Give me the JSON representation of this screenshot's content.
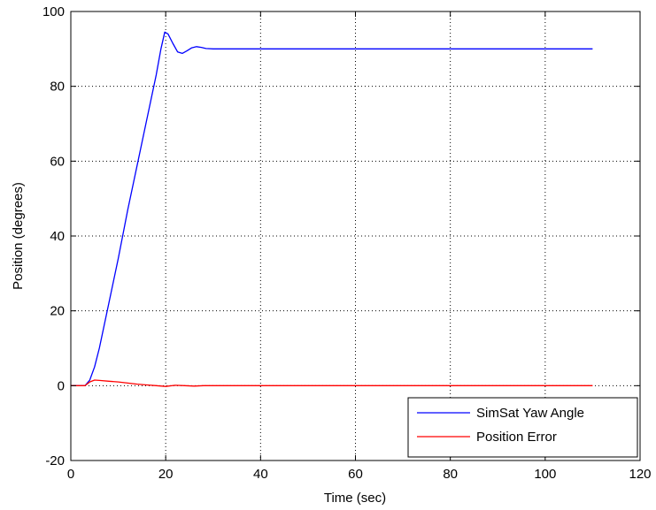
{
  "chart_data": {
    "type": "line",
    "title": "",
    "xlabel": "Time (sec)",
    "ylabel": "Position (degrees)",
    "xlim": [
      0,
      120
    ],
    "ylim": [
      -20,
      100
    ],
    "xticks": [
      0,
      20,
      40,
      60,
      80,
      100,
      120
    ],
    "yticks": [
      -20,
      0,
      20,
      40,
      60,
      80,
      100
    ],
    "grid": true,
    "legend_position": "bottom-right",
    "series": [
      {
        "name": "SimSat Yaw Angle",
        "color": "#0000ff",
        "x": [
          0,
          3,
          4,
          5,
          6,
          8,
          10,
          12,
          14,
          16,
          18,
          19,
          19.8,
          20.5,
          21.5,
          22.5,
          23.5,
          24.5,
          25.5,
          26.5,
          27.5,
          28.5,
          30,
          40,
          50,
          60,
          70,
          80,
          90,
          100,
          110
        ],
        "y": [
          0,
          0,
          1.5,
          5,
          10,
          22,
          34,
          47,
          59,
          71,
          83,
          90,
          94.5,
          94,
          91.5,
          89.2,
          88.8,
          89.5,
          90.3,
          90.6,
          90.4,
          90.1,
          90,
          90,
          90,
          90,
          90,
          90,
          90,
          90,
          90
        ]
      },
      {
        "name": "Position Error",
        "color": "#ff0000",
        "x": [
          0,
          3,
          4,
          5,
          6,
          8,
          10,
          12,
          14,
          16,
          18,
          20,
          22,
          24,
          26,
          28,
          30,
          40,
          50,
          60,
          70,
          80,
          90,
          100,
          110
        ],
        "y": [
          0,
          0,
          1,
          1.5,
          1.4,
          1.2,
          1,
          0.7,
          0.4,
          0.2,
          0,
          -0.2,
          0.1,
          0,
          -0.1,
          0,
          0,
          0,
          0,
          0,
          0,
          0,
          0,
          0,
          0
        ]
      }
    ]
  }
}
